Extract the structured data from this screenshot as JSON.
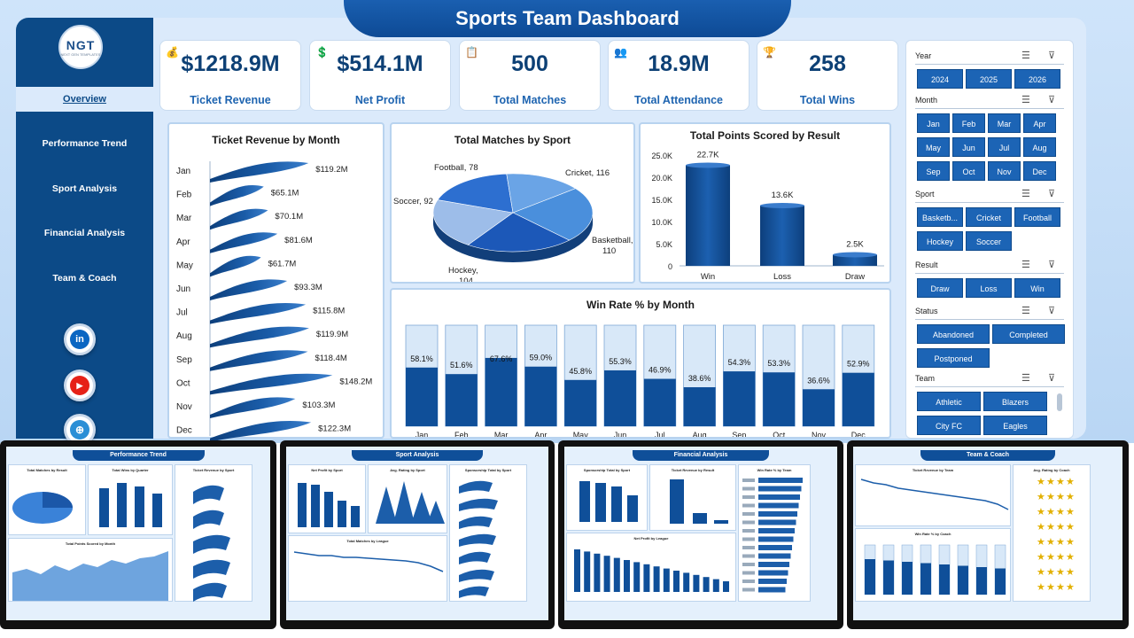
{
  "header": {
    "title": "Sports Team Dashboard"
  },
  "logo": {
    "text": "NGT",
    "subtitle": "NEXT GEN TEMPLATES"
  },
  "nav": [
    "Overview",
    "Performance Trend",
    "Sport Analysis",
    "Financial Analysis",
    "Team & Coach"
  ],
  "social": [
    "linkedin-icon",
    "youtube-icon",
    "website-icon"
  ],
  "kpis": [
    {
      "value": "$1218.9M",
      "label": "Ticket Revenue",
      "icon": "money-bag-icon"
    },
    {
      "value": "$514.1M",
      "label": "Net Profit",
      "icon": "money-icon"
    },
    {
      "value": "500",
      "label": "Total Matches",
      "icon": "clipboard-icon"
    },
    {
      "value": "18.9M",
      "label": "Total Attendance",
      "icon": "people-icon"
    },
    {
      "value": "258",
      "label": "Total Wins",
      "icon": "trophy-icon"
    }
  ],
  "revenue_chart": {
    "title": "Ticket Revenue  by Month",
    "categories": [
      "Jan",
      "Feb",
      "Mar",
      "Apr",
      "May",
      "Jun",
      "Jul",
      "Aug",
      "Sep",
      "Oct",
      "Nov",
      "Dec"
    ],
    "labels": [
      "$119.2M",
      "$65.1M",
      "$70.1M",
      "$81.6M",
      "$61.7M",
      "$93.3M",
      "$115.8M",
      "$119.9M",
      "$118.4M",
      "$148.2M",
      "$103.3M",
      "$122.3M"
    ],
    "values": [
      119.2,
      65.1,
      70.1,
      81.6,
      61.7,
      93.3,
      115.8,
      119.9,
      118.4,
      148.2,
      103.3,
      122.3
    ]
  },
  "pie_chart": {
    "title": "Total Matches by Sport",
    "slices": [
      {
        "name": "Cricket",
        "value": 116,
        "label": "Cricket, 116",
        "color": "#4a8fdc"
      },
      {
        "name": "Basketball",
        "value": 110,
        "label": "Basketball,\n110",
        "color": "#1c58b8"
      },
      {
        "name": "Hockey",
        "value": 104,
        "label": "Hockey,\n104",
        "color": "#9dbde9"
      },
      {
        "name": "Soccer",
        "value": 92,
        "label": "Soccer, 92",
        "color": "#2d6fd0"
      },
      {
        "name": "Football",
        "value": 78,
        "label": "Football, 78",
        "color": "#6aa4e6"
      }
    ]
  },
  "points_chart": {
    "title": "Total Points Scored by Result",
    "categories": [
      "Win",
      "Loss",
      "Draw"
    ],
    "values": [
      22.7,
      13.6,
      2.5
    ],
    "labels": [
      "22.7K",
      "13.6K",
      "2.5K"
    ],
    "yticks": [
      "25.0K",
      "20.0K",
      "15.0K",
      "10.0K",
      "5.0K",
      "0"
    ],
    "ylim": [
      0,
      25
    ]
  },
  "winrate_chart": {
    "title": "Win Rate % by Month",
    "categories": [
      "Jan",
      "Feb",
      "Mar",
      "Apr",
      "May",
      "Jun",
      "Jul",
      "Aug",
      "Sep",
      "Oct",
      "Nov",
      "Dec"
    ],
    "values": [
      58.1,
      51.6,
      67.6,
      59.0,
      45.8,
      55.3,
      46.9,
      38.6,
      54.3,
      53.3,
      36.6,
      52.9
    ],
    "labels": [
      "58.1%",
      "51.6%",
      "67.6%",
      "59.0%",
      "45.8%",
      "55.3%",
      "46.9%",
      "38.6%",
      "54.3%",
      "53.3%",
      "36.6%",
      "52.9%"
    ]
  },
  "slicers": [
    {
      "title": "Year",
      "items": [
        "2024",
        "2025",
        "2026"
      ]
    },
    {
      "title": "Month",
      "items": [
        "Jan",
        "Feb",
        "Mar",
        "Apr",
        "May",
        "Jun",
        "Jul",
        "Aug",
        "Sep",
        "Oct",
        "Nov",
        "Dec"
      ]
    },
    {
      "title": "Sport",
      "items": [
        "Basketb...",
        "Cricket",
        "Football",
        "Hockey",
        "Soccer"
      ]
    },
    {
      "title": "Result",
      "items": [
        "Draw",
        "Loss",
        "Win"
      ]
    },
    {
      "title": "Status",
      "items": [
        "Abandoned",
        "Completed",
        "Postponed"
      ]
    },
    {
      "title": "Team",
      "items": [
        "Athletic",
        "Blazers",
        "City FC",
        "Eagles"
      ]
    }
  ],
  "thumbnails": [
    {
      "title": "Performance Trend",
      "panels": [
        "Total Matches by Result",
        "Total Wins by Quarter",
        "Ticket Revenue by Sport",
        "Total Points Scored by Month"
      ]
    },
    {
      "title": "Sport Analysis",
      "panels": [
        "Net Profit by Sport",
        "Avg. Rating by Sport",
        "Sponsorship Total by Sport",
        "Total Matches by League"
      ]
    },
    {
      "title": "Financial Analysis",
      "panels": [
        "Sponsorship Total by Sport",
        "Ticket Revenue by Result",
        "Win Rate % by Team",
        "Net Profit by League"
      ]
    },
    {
      "title": "Team & Coach",
      "panels": [
        "Ticket Revenue by Team",
        "Avg. Rating by Coach",
        "Win Rate % by Coach"
      ]
    }
  ],
  "colors": {
    "primary": "#0c4a87",
    "accent": "#1c64b5",
    "bar_dark": "#0f4f99",
    "bar_light": "#d8e8f8"
  }
}
